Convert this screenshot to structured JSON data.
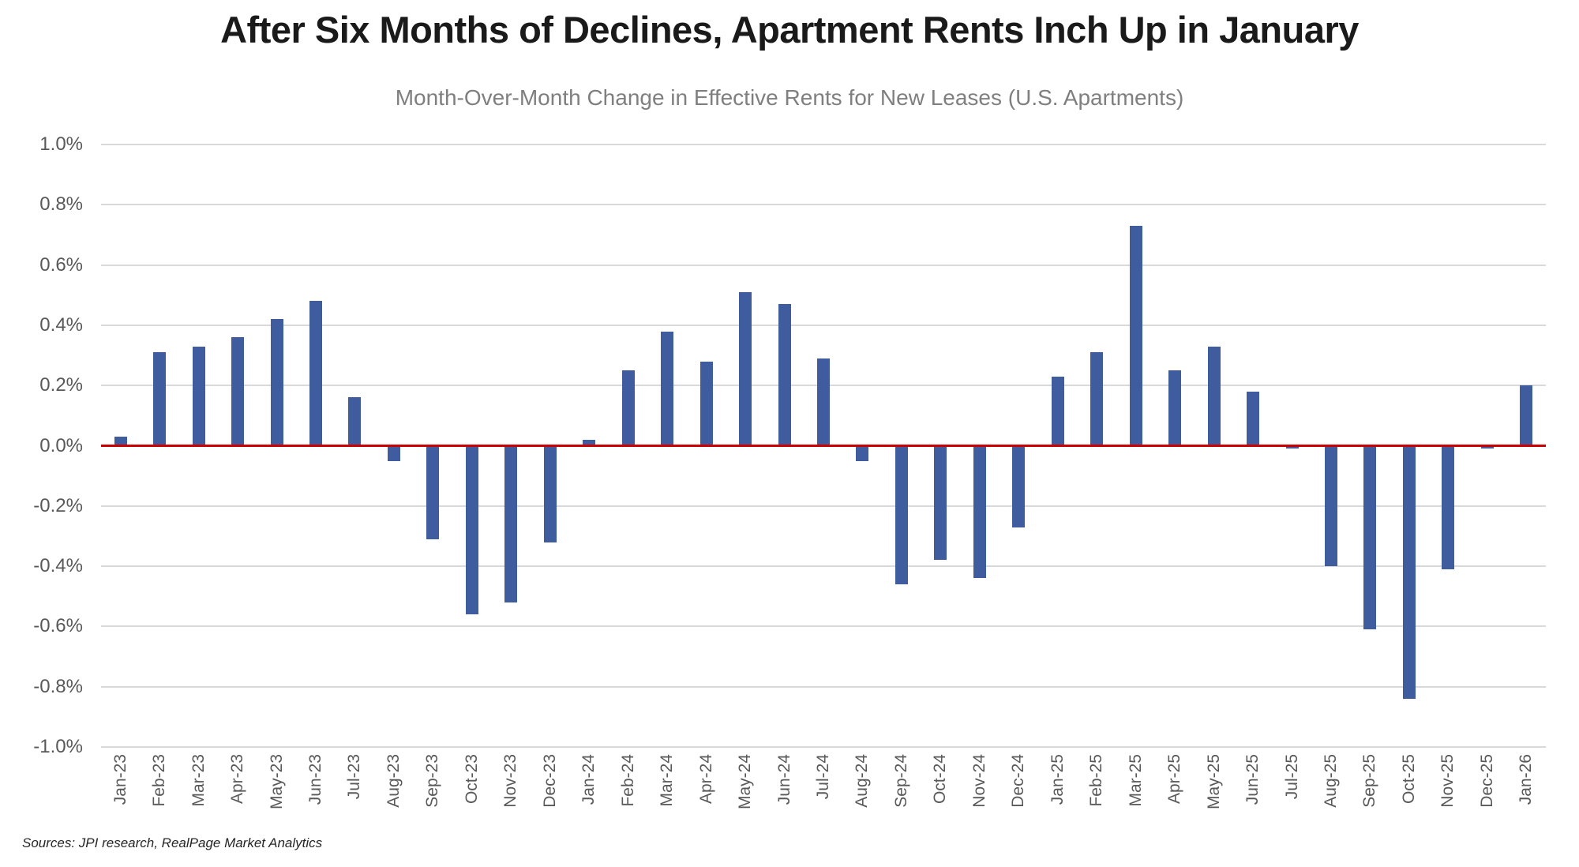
{
  "page": {
    "source_note": "Sources: JPI research, RealPage Market Analytics"
  },
  "chart_data": {
    "type": "bar",
    "title": "After Six Months of Declines, Apartment Rents Inch Up in January",
    "subtitle": "Month-Over-Month Change in Effective Rents for New Leases (U.S. Apartments)",
    "xlabel": "",
    "ylabel": "",
    "categories": [
      "Jan-23",
      "Feb-23",
      "Mar-23",
      "Apr-23",
      "May-23",
      "Jun-23",
      "Jul-23",
      "Aug-23",
      "Sep-23",
      "Oct-23",
      "Nov-23",
      "Dec-23",
      "Jan-24",
      "Feb-24",
      "Mar-24",
      "Apr-24",
      "May-24",
      "Jun-24",
      "Jul-24",
      "Aug-24",
      "Sep-24",
      "Oct-24",
      "Nov-24",
      "Dec-24",
      "Jan-25",
      "Feb-25",
      "Mar-25",
      "Apr-25",
      "May-25",
      "Jun-25",
      "Jul-25",
      "Aug-25",
      "Sep-25",
      "Oct-25",
      "Nov-25",
      "Dec-25",
      "Jan-26"
    ],
    "values": [
      0.03,
      0.31,
      0.33,
      0.36,
      0.42,
      0.48,
      0.16,
      -0.05,
      -0.31,
      -0.56,
      -0.52,
      -0.32,
      0.02,
      0.25,
      0.38,
      0.28,
      0.51,
      0.47,
      0.29,
      -0.05,
      -0.46,
      -0.38,
      -0.44,
      -0.27,
      0.23,
      0.31,
      0.73,
      0.25,
      0.33,
      0.18,
      -0.01,
      -0.4,
      -0.61,
      -0.84,
      -0.41,
      -0.01,
      0.2
    ],
    "unit": "%",
    "ylim": [
      -1.0,
      1.0
    ],
    "y_tick_values": [
      1.0,
      0.8,
      0.6,
      0.4,
      0.2,
      0.0,
      -0.2,
      -0.4,
      -0.6,
      -0.8,
      -1.0
    ],
    "y_tick_labels": [
      "1.0%",
      "0.8%",
      "0.6%",
      "0.4%",
      "0.2%",
      "0.0%",
      "-0.2%",
      "-0.4%",
      "-0.6%",
      "-0.8%",
      "-1.0%"
    ],
    "grid": true,
    "legend": false,
    "colors": {
      "bar": "#3E5C9E",
      "zero_line": "#CC0000",
      "gridline": "#D9D9D9",
      "axis_text": "#595959",
      "title_text": "#1A1A1A",
      "subtitle_text": "#7F7F7F"
    }
  }
}
